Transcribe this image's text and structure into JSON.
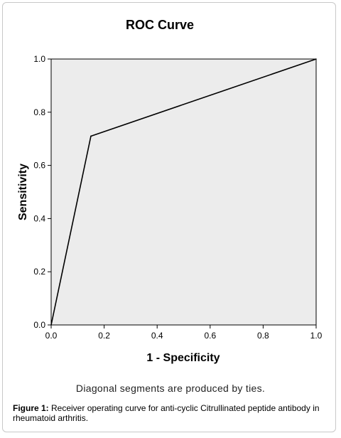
{
  "chart_data": {
    "type": "line",
    "title": "ROC Curve",
    "xlabel": "1 - Specificity",
    "ylabel": "Sensitivity",
    "xlim": [
      0.0,
      1.0
    ],
    "ylim": [
      0.0,
      1.0
    ],
    "xticks": [
      "0.0",
      "0.2",
      "0.4",
      "0.6",
      "0.8",
      "1.0"
    ],
    "yticks": [
      "0.0",
      "0.2",
      "0.4",
      "0.6",
      "0.8",
      "1.0"
    ],
    "series": [
      {
        "x": [
          0.0,
          0.15,
          1.0
        ],
        "y": [
          0.0,
          0.71,
          1.0
        ]
      }
    ],
    "grid": false,
    "plot_background": "#ececec",
    "line_color": "#000000",
    "footnote": "Diagonal segments are produced by ties."
  },
  "caption": {
    "prefix": "Figure 1:",
    "text": " Receiver operating curve for anti-cyclic Citrullinated peptide antibody in rheumatoid arthritis."
  }
}
